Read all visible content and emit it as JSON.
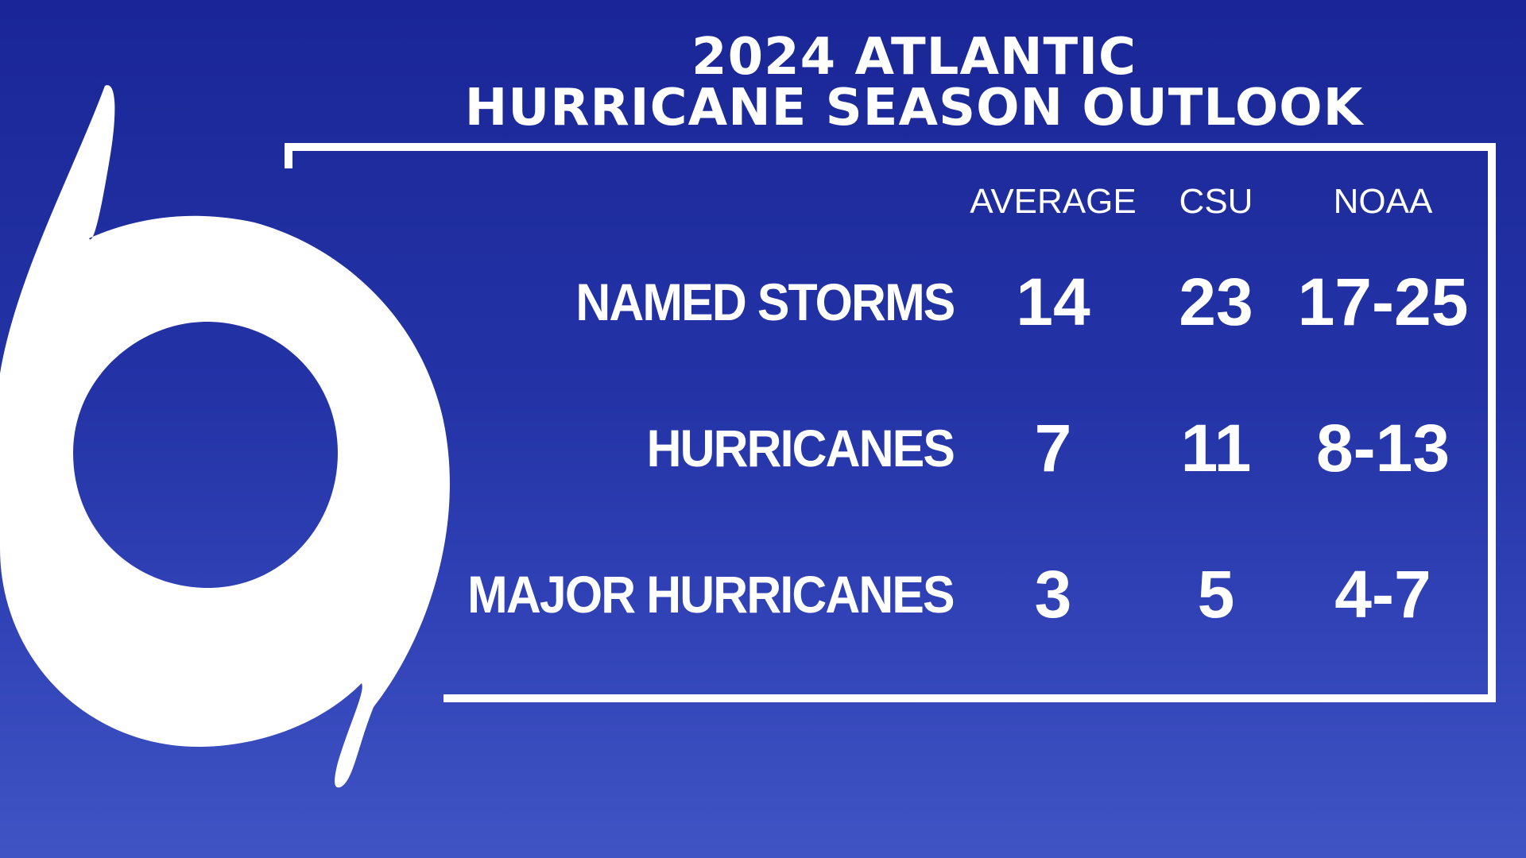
{
  "title": {
    "line1": "2024 ATLANTIC",
    "line2": "HURRICANE SEASON OUTLOOK"
  },
  "table": {
    "columns": [
      "AVERAGE",
      "CSU",
      "NOAA"
    ],
    "rows": [
      {
        "label": "NAMED STORMS",
        "average": "14",
        "csu": "23",
        "noaa": "17-25"
      },
      {
        "label": "HURRICANES",
        "average": "7",
        "csu": "11",
        "noaa": "8-13"
      },
      {
        "label": "MAJOR HURRICANES",
        "average": "3",
        "csu": "5",
        "noaa": "4-7"
      }
    ]
  },
  "logo": {
    "icon": "hurricane-symbol-icon"
  },
  "colors": {
    "background_top": "#1a2696",
    "background_bottom": "#4054c4",
    "foreground": "#ffffff"
  }
}
